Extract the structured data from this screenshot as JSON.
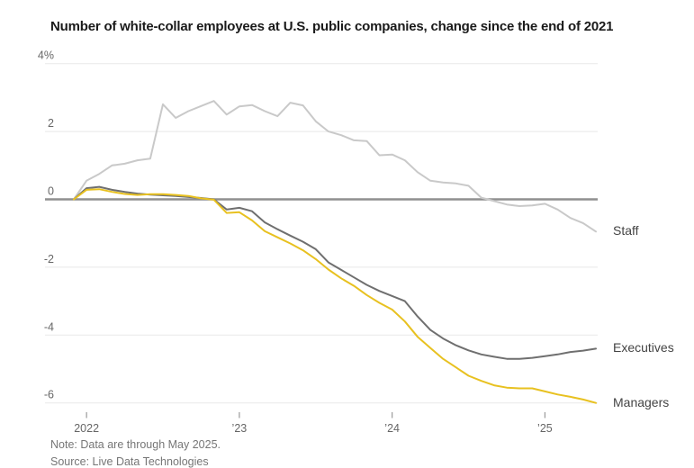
{
  "title": "Number of white-collar employees at U.S. public companies, change since the end of 2021",
  "note": "Note: Data are through May 2025.",
  "source": "Source: Live Data Technologies",
  "colors": {
    "staff_line": "#c9c9c9",
    "executives_line": "#6f6f6f",
    "managers_line": "#e8c120",
    "gridline": "#ececec",
    "zero_line": "#8f8f8f",
    "tick": "#9a9a9a",
    "axis_label": "#666666",
    "title_text": "#1a1a1a",
    "note_text": "#767676",
    "series_label_text": "#444444"
  },
  "chart_data": {
    "type": "line",
    "title": "Number of white-collar employees at U.S. public companies, change since the end of 2021",
    "x_unit": "month",
    "x": [
      "2021-12",
      "2022-01",
      "2022-02",
      "2022-03",
      "2022-04",
      "2022-05",
      "2022-06",
      "2022-07",
      "2022-08",
      "2022-09",
      "2022-10",
      "2022-11",
      "2022-12",
      "2023-01",
      "2023-02",
      "2023-03",
      "2023-04",
      "2023-05",
      "2023-06",
      "2023-07",
      "2023-08",
      "2023-09",
      "2023-10",
      "2023-11",
      "2023-12",
      "2024-01",
      "2024-02",
      "2024-03",
      "2024-04",
      "2024-05",
      "2024-06",
      "2024-07",
      "2024-08",
      "2024-09",
      "2024-10",
      "2024-11",
      "2024-12",
      "2025-01",
      "2025-02",
      "2025-03",
      "2025-04",
      "2025-05"
    ],
    "series": [
      {
        "name": "Staff",
        "color": "#c9c9c9",
        "values": [
          0,
          0.55,
          0.75,
          1.0,
          1.05,
          1.15,
          1.2,
          2.8,
          2.4,
          2.6,
          2.75,
          2.9,
          2.5,
          2.74,
          2.78,
          2.6,
          2.45,
          2.85,
          2.77,
          2.3,
          2.0,
          1.89,
          1.74,
          1.72,
          1.3,
          1.32,
          1.15,
          0.8,
          0.55,
          0.5,
          0.47,
          0.4,
          0.05,
          -0.05,
          -0.15,
          -0.2,
          -0.18,
          -0.13,
          -0.3,
          -0.55,
          -0.7,
          -0.95
        ]
      },
      {
        "name": "Executives",
        "color": "#6f6f6f",
        "values": [
          0,
          0.33,
          0.37,
          0.28,
          0.22,
          0.17,
          0.14,
          0.12,
          0.1,
          0.07,
          0.04,
          0,
          -0.3,
          -0.25,
          -0.35,
          -0.68,
          -0.88,
          -1.07,
          -1.25,
          -1.47,
          -1.86,
          -2.08,
          -2.3,
          -2.52,
          -2.7,
          -2.85,
          -3.0,
          -3.45,
          -3.85,
          -4.1,
          -4.3,
          -4.45,
          -4.57,
          -4.64,
          -4.7,
          -4.7,
          -4.67,
          -4.62,
          -4.57,
          -4.5,
          -4.46,
          -4.4
        ]
      },
      {
        "name": "Managers",
        "color": "#e8c120",
        "values": [
          0,
          0.28,
          0.3,
          0.22,
          0.16,
          0.13,
          0.15,
          0.15,
          0.13,
          0.1,
          0.03,
          -0.01,
          -0.4,
          -0.38,
          -0.62,
          -0.94,
          -1.12,
          -1.3,
          -1.5,
          -1.76,
          -2.07,
          -2.33,
          -2.55,
          -2.82,
          -3.05,
          -3.25,
          -3.6,
          -4.05,
          -4.38,
          -4.7,
          -4.95,
          -5.2,
          -5.35,
          -5.48,
          -5.55,
          -5.57,
          -5.57,
          -5.66,
          -5.75,
          -5.82,
          -5.9,
          -6.0
        ]
      }
    ],
    "yticks": [
      {
        "value": 4,
        "label": "4%"
      },
      {
        "value": 2,
        "label": "2"
      },
      {
        "value": 0,
        "label": "0"
      },
      {
        "value": -2,
        "label": "-2"
      },
      {
        "value": -4,
        "label": "-4"
      },
      {
        "value": -6,
        "label": "-6"
      }
    ],
    "xticks": [
      {
        "label": "2022",
        "month_index": 1
      },
      {
        "label": "’23",
        "month_index": 13
      },
      {
        "label": "’24",
        "month_index": 25
      },
      {
        "label": "’25",
        "month_index": 37
      }
    ],
    "ylim": [
      -6.4,
      4.3
    ],
    "grid": true,
    "zero_line": true,
    "legend_position": "right-end-labels"
  }
}
